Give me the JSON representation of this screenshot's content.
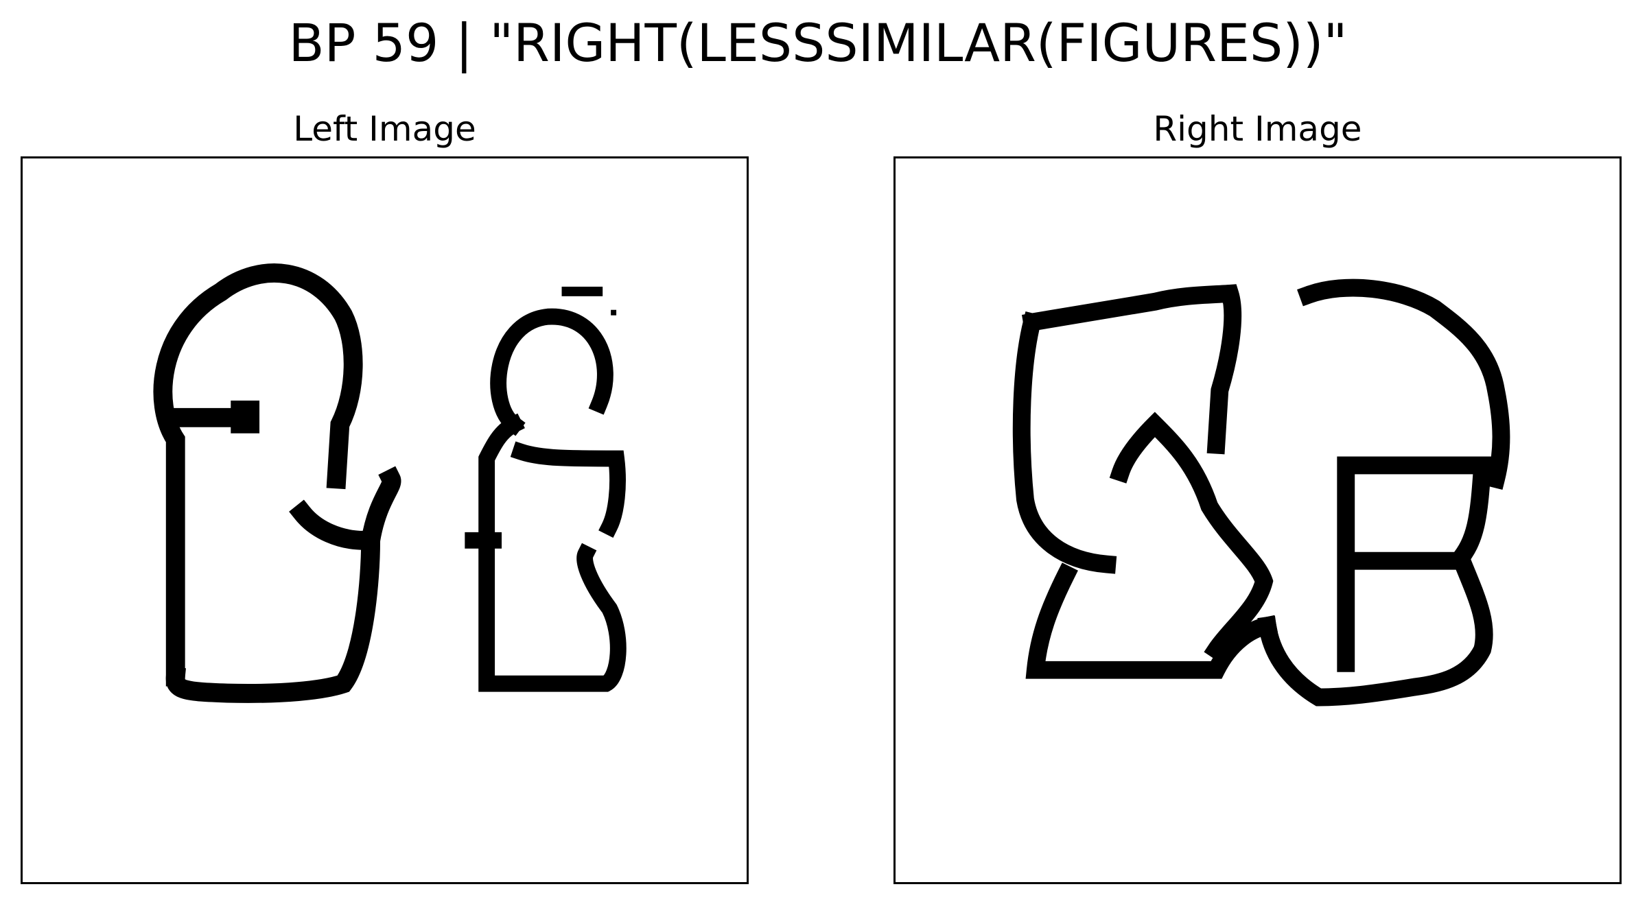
{
  "title": "BP 59 | \"RIGHT(LESSSIMILAR(FIGURES))\"",
  "panels": {
    "left": {
      "title": "Left Image",
      "figures": [
        "outline-figure",
        "outline-figure"
      ]
    },
    "right": {
      "title": "Right Image",
      "figures": [
        "outline-figure",
        "outline-figure"
      ]
    }
  },
  "colors": {
    "background": "#ffffff",
    "ink": "#000000"
  }
}
